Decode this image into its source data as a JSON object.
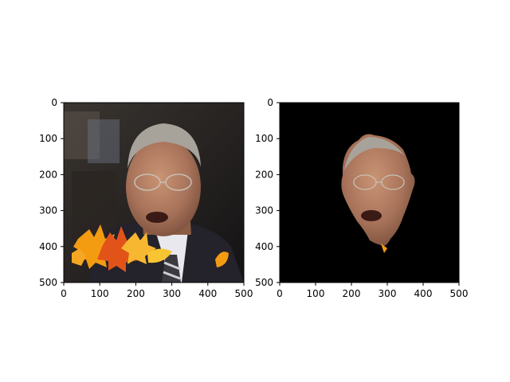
{
  "chart_data": [
    {
      "type": "image",
      "content": "photo of a man in a suit and tie with autumn maple leaves overlaid at lower left",
      "xlim": [
        0,
        500
      ],
      "ylim": [
        500,
        0
      ],
      "x_ticks": [
        "0",
        "100",
        "200",
        "300",
        "400",
        "500"
      ],
      "y_ticks": [
        "0",
        "100",
        "200",
        "300",
        "400",
        "500"
      ],
      "xlabel": "",
      "ylabel": "",
      "title": ""
    },
    {
      "type": "image",
      "content": "segmentation mask: the face region cut out on a black background",
      "xlim": [
        0,
        500
      ],
      "ylim": [
        500,
        0
      ],
      "x_ticks": [
        "0",
        "100",
        "200",
        "300",
        "400",
        "500"
      ],
      "y_ticks": [
        "0",
        "100",
        "200",
        "300",
        "400",
        "500"
      ],
      "xlabel": "",
      "ylabel": "",
      "title": ""
    }
  ],
  "colors": {
    "background": "#ffffff",
    "mask_background": "#000000",
    "suit": "#24222a",
    "skin": "#b07d60",
    "hair": "#a8a39a",
    "leaf_orange": "#f39c12",
    "leaf_red": "#e2531a",
    "leaf_yellow": "#f7c531"
  }
}
